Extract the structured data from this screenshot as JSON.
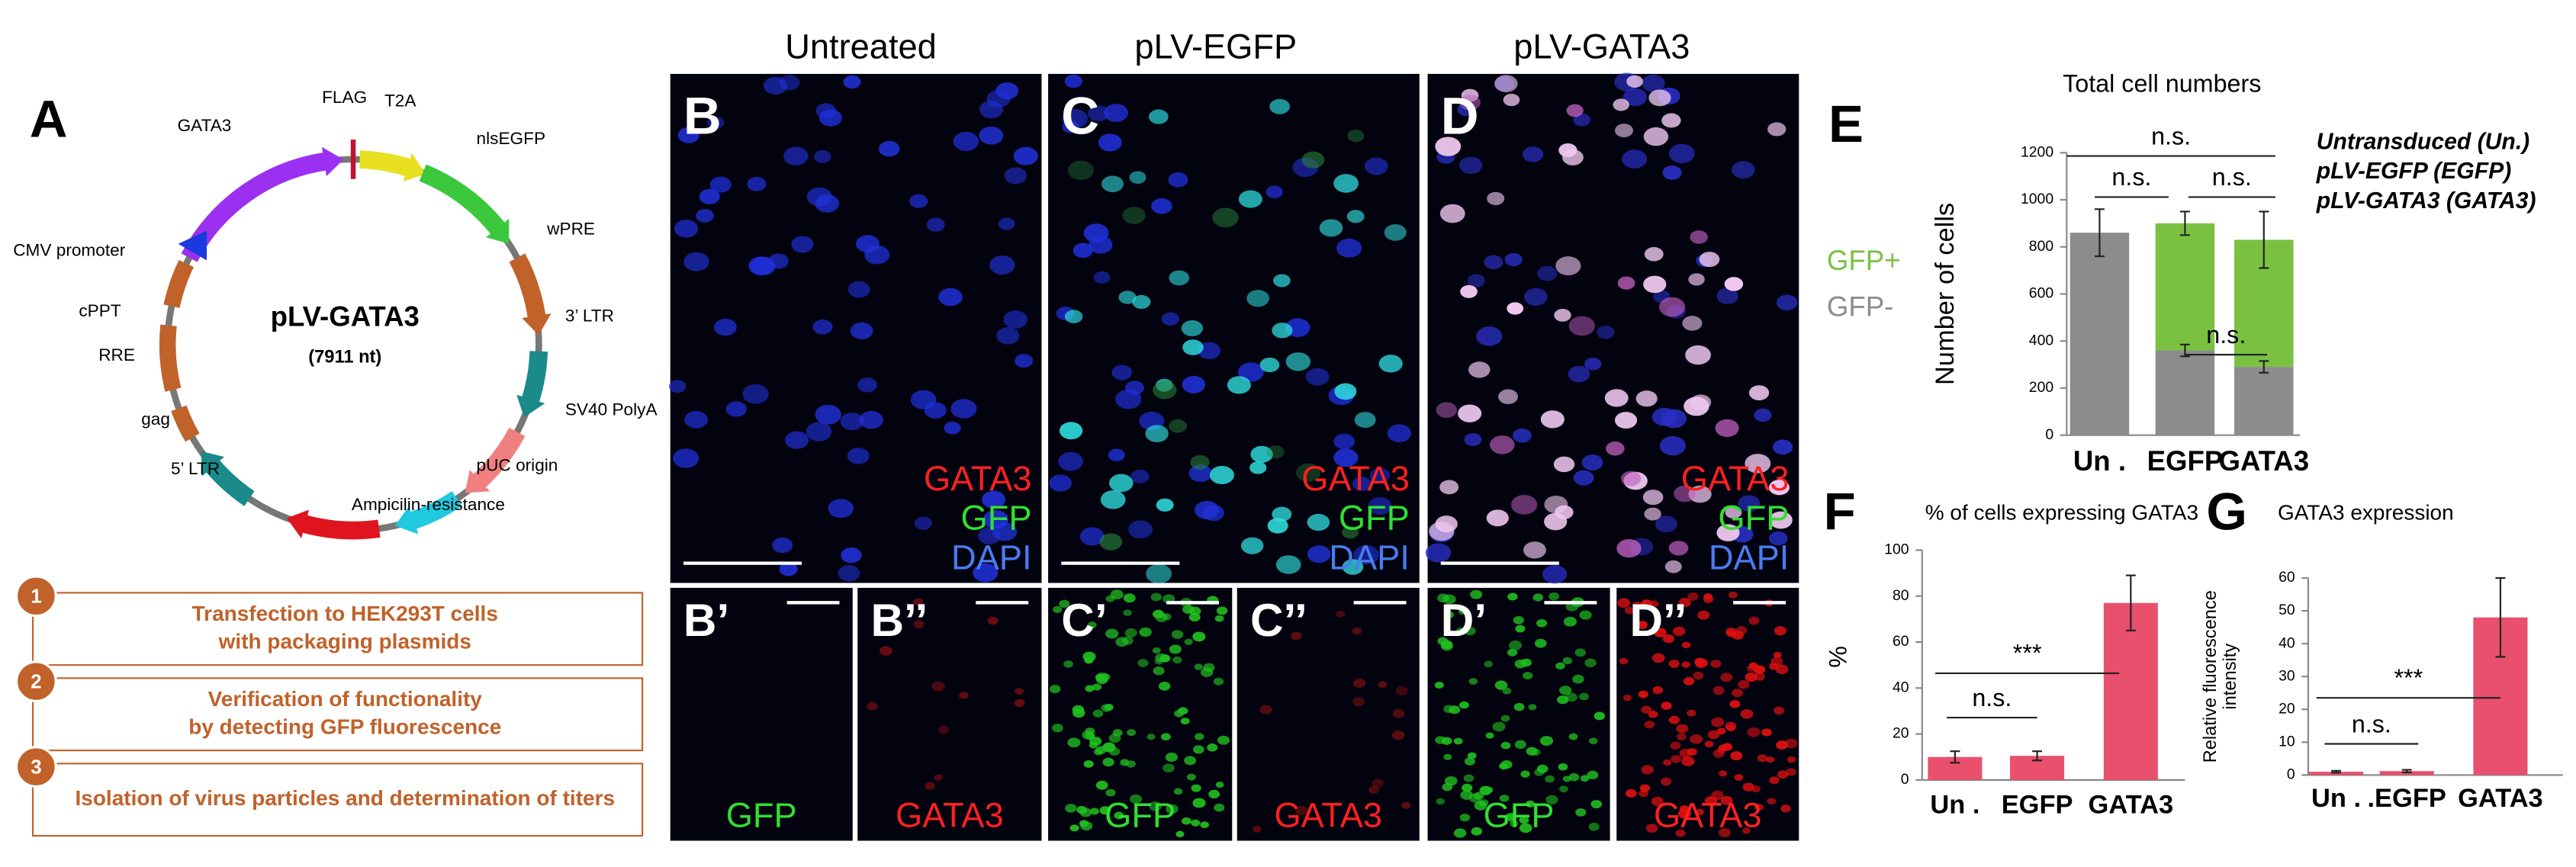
{
  "figure": {
    "panel_a": {
      "letter": "A",
      "plasmid_name": "pLV-GATA3",
      "plasmid_size": "(7911 nt)",
      "features": [
        "FLAG",
        "T2A",
        "nlsEGFP",
        "wPRE",
        "3’ LTR",
        "SV40 PolyA",
        "pUC origin",
        "Ampicilin-resistance",
        "5’ LTR",
        "gag",
        "RRE",
        "cPPT",
        "CMV promoter",
        "GATA3"
      ]
    },
    "steps": [
      {
        "number": "1",
        "text": [
          "Transfection to HEK293T cells",
          "with packaging plasmids"
        ]
      },
      {
        "number": "2",
        "text": [
          "Verification of functionality",
          "by detecting GFP fluorescence"
        ]
      },
      {
        "number": "3",
        "text": [
          "Isolation of virus particles and determination of titers"
        ]
      }
    ],
    "microscopy": {
      "columns": [
        "Untreated",
        "pLV-EGFP",
        "pLV-GATA3"
      ],
      "panels": [
        {
          "letter": "B",
          "channels": [
            "GATA3",
            "GFP",
            "DAPI"
          ]
        },
        {
          "letter": "C",
          "channels": [
            "GATA3",
            "GFP",
            "DAPI"
          ]
        },
        {
          "letter": "D",
          "channels": [
            "GATA3",
            "GFP",
            "DAPI"
          ]
        },
        {
          "letter": "B’",
          "channels": [
            "GFP"
          ]
        },
        {
          "letter": "B’’",
          "channels": [
            "GATA3"
          ]
        },
        {
          "letter": "C’",
          "channels": [
            "GFP"
          ]
        },
        {
          "letter": "C’’",
          "channels": [
            "GATA3"
          ]
        },
        {
          "letter": "D’",
          "channels": [
            "GFP"
          ]
        },
        {
          "letter": "D’’",
          "channels": [
            "GATA3"
          ]
        }
      ]
    }
  },
  "chart_data": [
    {
      "type": "bar",
      "stacked": true,
      "letter": "E",
      "title": "Total cell numbers",
      "ylabel": [
        "Number of cells"
      ],
      "categories": [
        "Un .",
        "EGFP",
        "GATA3"
      ],
      "series": [
        {
          "name": "GFP-",
          "color": "#8c8c8c",
          "values": [
            860,
            360,
            290
          ],
          "errors": [
            100,
            25,
            25
          ]
        },
        {
          "name": "GFP+",
          "color": "#7ac142",
          "values": [
            0,
            540,
            540
          ],
          "errors": [
            null,
            50,
            120
          ]
        }
      ],
      "ylim": [
        0,
        1200
      ],
      "yticks": [
        0,
        200,
        400,
        600,
        800,
        1000,
        1200
      ],
      "annotations": [
        "n.s.",
        "n.s.",
        "n.s.",
        "n.s."
      ],
      "legend_notes": [
        "Untransduced (Un.)",
        "pLV-EGFP (EGFP)",
        "pLV-GATA3 (GATA3)"
      ]
    },
    {
      "type": "bar",
      "letter": "F",
      "title": "% of cells expressing GATA3",
      "ylabel": [
        "%"
      ],
      "categories": [
        "Un .",
        "EGFP",
        "GATA3"
      ],
      "values": [
        10,
        10.5,
        77
      ],
      "errors": [
        2.5,
        2,
        12
      ],
      "color": "#e8506e",
      "ylim": [
        0,
        100
      ],
      "yticks": [
        0,
        20,
        40,
        60,
        80,
        100
      ],
      "annotations": [
        "n.s.",
        "***"
      ]
    },
    {
      "type": "bar",
      "letter": "G",
      "title": "GATA3 expression",
      "ylabel": [
        "Relative fluorescence",
        "intensity"
      ],
      "categories": [
        "Un .",
        ".EGFP",
        "GATA3"
      ],
      "values": [
        1,
        1.2,
        48
      ],
      "errors": [
        0.3,
        0.4,
        12
      ],
      "color": "#e8506e",
      "ylim": [
        0,
        60
      ],
      "yticks": [
        0,
        10,
        20,
        30,
        40,
        50,
        60
      ],
      "annotations": [
        "n.s.",
        "***"
      ]
    }
  ]
}
